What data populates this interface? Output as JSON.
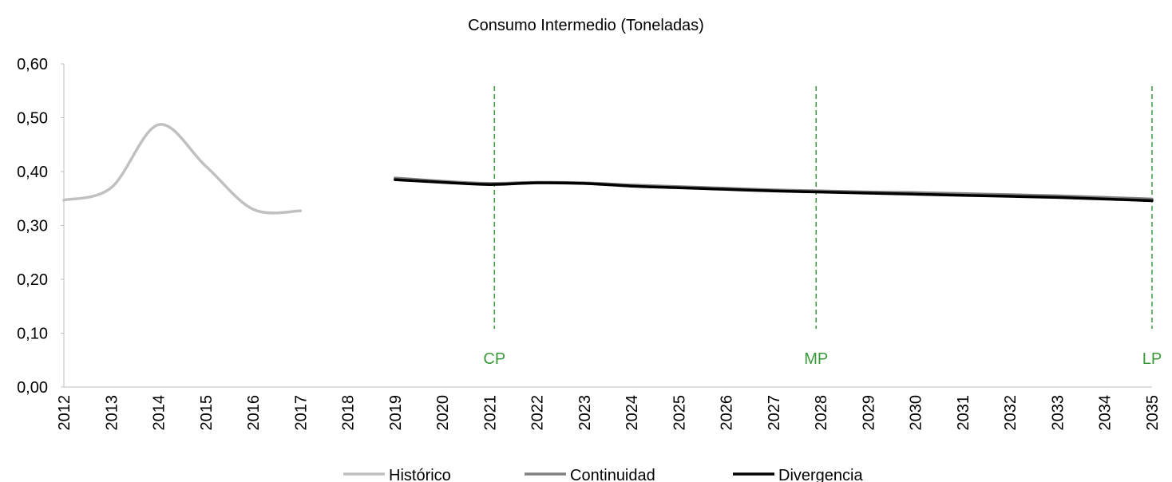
{
  "chart_data": {
    "type": "line",
    "title": "Consumo Intermedio (Toneladas)",
    "categories": [
      "2012",
      "2013",
      "2014",
      "2015",
      "2016",
      "2017",
      "2018",
      "2019",
      "2020",
      "2021",
      "2022",
      "2023",
      "2024",
      "2025",
      "2026",
      "2027",
      "2028",
      "2029",
      "2030",
      "2031",
      "2032",
      "2033",
      "2034",
      "2035"
    ],
    "series": [
      {
        "name": "Histórico",
        "color": "#c0c0c0",
        "values": [
          0.347,
          0.37,
          0.487,
          0.41,
          0.33,
          0.327,
          null,
          null,
          null,
          null,
          null,
          null,
          null,
          null,
          null,
          null,
          null,
          null,
          null,
          null,
          null,
          null,
          null,
          null
        ]
      },
      {
        "name": "Continuidad",
        "color": "#808080",
        "values": [
          null,
          null,
          null,
          null,
          null,
          null,
          null,
          0.388,
          0.382,
          0.378,
          0.38,
          0.379,
          0.375,
          0.372,
          0.369,
          0.366,
          0.364,
          0.362,
          0.361,
          0.359,
          0.357,
          0.355,
          0.352,
          0.349
        ]
      },
      {
        "name": "Divergencia",
        "color": "#000000",
        "values": [
          null,
          null,
          null,
          null,
          null,
          null,
          null,
          0.385,
          0.38,
          0.376,
          0.379,
          0.378,
          0.373,
          0.37,
          0.367,
          0.364,
          0.362,
          0.36,
          0.358,
          0.356,
          0.354,
          0.352,
          0.349,
          0.346
        ]
      }
    ],
    "ylim": [
      0,
      0.6
    ],
    "yticks": [
      {
        "value": 0,
        "label": "0,00"
      },
      {
        "value": 0.1,
        "label": "0,10"
      },
      {
        "value": 0.2,
        "label": "0,20"
      },
      {
        "value": 0.3,
        "label": "0,30"
      },
      {
        "value": 0.4,
        "label": "0,40"
      },
      {
        "value": 0.5,
        "label": "0,50"
      },
      {
        "value": 0.6,
        "label": "0,60"
      }
    ],
    "annotations": [
      {
        "label": "CP",
        "x": 2021.1,
        "color": "#3a9a3a"
      },
      {
        "label": "MP",
        "x": 2027.9,
        "color": "#3a9a3a"
      },
      {
        "label": "LP",
        "x": 2035,
        "color": "#3a9a3a"
      }
    ],
    "grid": false,
    "legend": "bottom"
  }
}
